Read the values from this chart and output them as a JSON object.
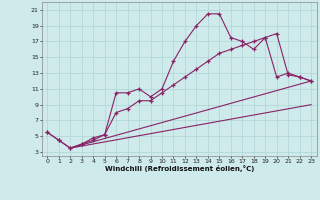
{
  "xlabel": "Windchill (Refroidissement éolien,°C)",
  "bg_color": "#ceeaea",
  "grid_color": "#add4d4",
  "line_color": "#882266",
  "xlim": [
    -0.5,
    23.5
  ],
  "ylim": [
    2.5,
    22
  ],
  "xticks": [
    0,
    1,
    2,
    3,
    4,
    5,
    6,
    7,
    8,
    9,
    10,
    11,
    12,
    13,
    14,
    15,
    16,
    17,
    18,
    19,
    20,
    21,
    22,
    23
  ],
  "yticks": [
    3,
    5,
    7,
    9,
    11,
    13,
    15,
    17,
    19,
    21
  ],
  "main_x": [
    0,
    1,
    2,
    3,
    4,
    5,
    6,
    7,
    8,
    9,
    10,
    11,
    12,
    13,
    14,
    15,
    16,
    17,
    18,
    19,
    20,
    21,
    22,
    23
  ],
  "main_y": [
    5.5,
    4.5,
    3.5,
    4.0,
    4.5,
    5.2,
    10.5,
    10.5,
    11.0,
    10.0,
    11.0,
    14.5,
    17.0,
    19.0,
    20.5,
    20.5,
    17.5,
    17.0,
    16.0,
    17.5,
    12.5,
    13.0,
    12.5,
    12.0
  ],
  "line2_x": [
    2,
    23
  ],
  "line2_y": [
    3.5,
    12.0
  ],
  "line3_x": [
    2,
    23
  ],
  "line3_y": [
    3.5,
    9.0
  ],
  "second_x": [
    0,
    1,
    2,
    3,
    4,
    5,
    6,
    7,
    8,
    9,
    10,
    11,
    12,
    13,
    14,
    15,
    16,
    17,
    18,
    19,
    20,
    21,
    22,
    23
  ],
  "second_y": [
    5.5,
    4.5,
    3.5,
    4.0,
    4.8,
    5.2,
    8.0,
    8.5,
    9.5,
    9.5,
    10.5,
    11.5,
    12.5,
    13.5,
    14.5,
    15.5,
    16.0,
    16.5,
    17.0,
    17.5,
    18.0,
    12.8,
    12.5,
    12.0
  ]
}
